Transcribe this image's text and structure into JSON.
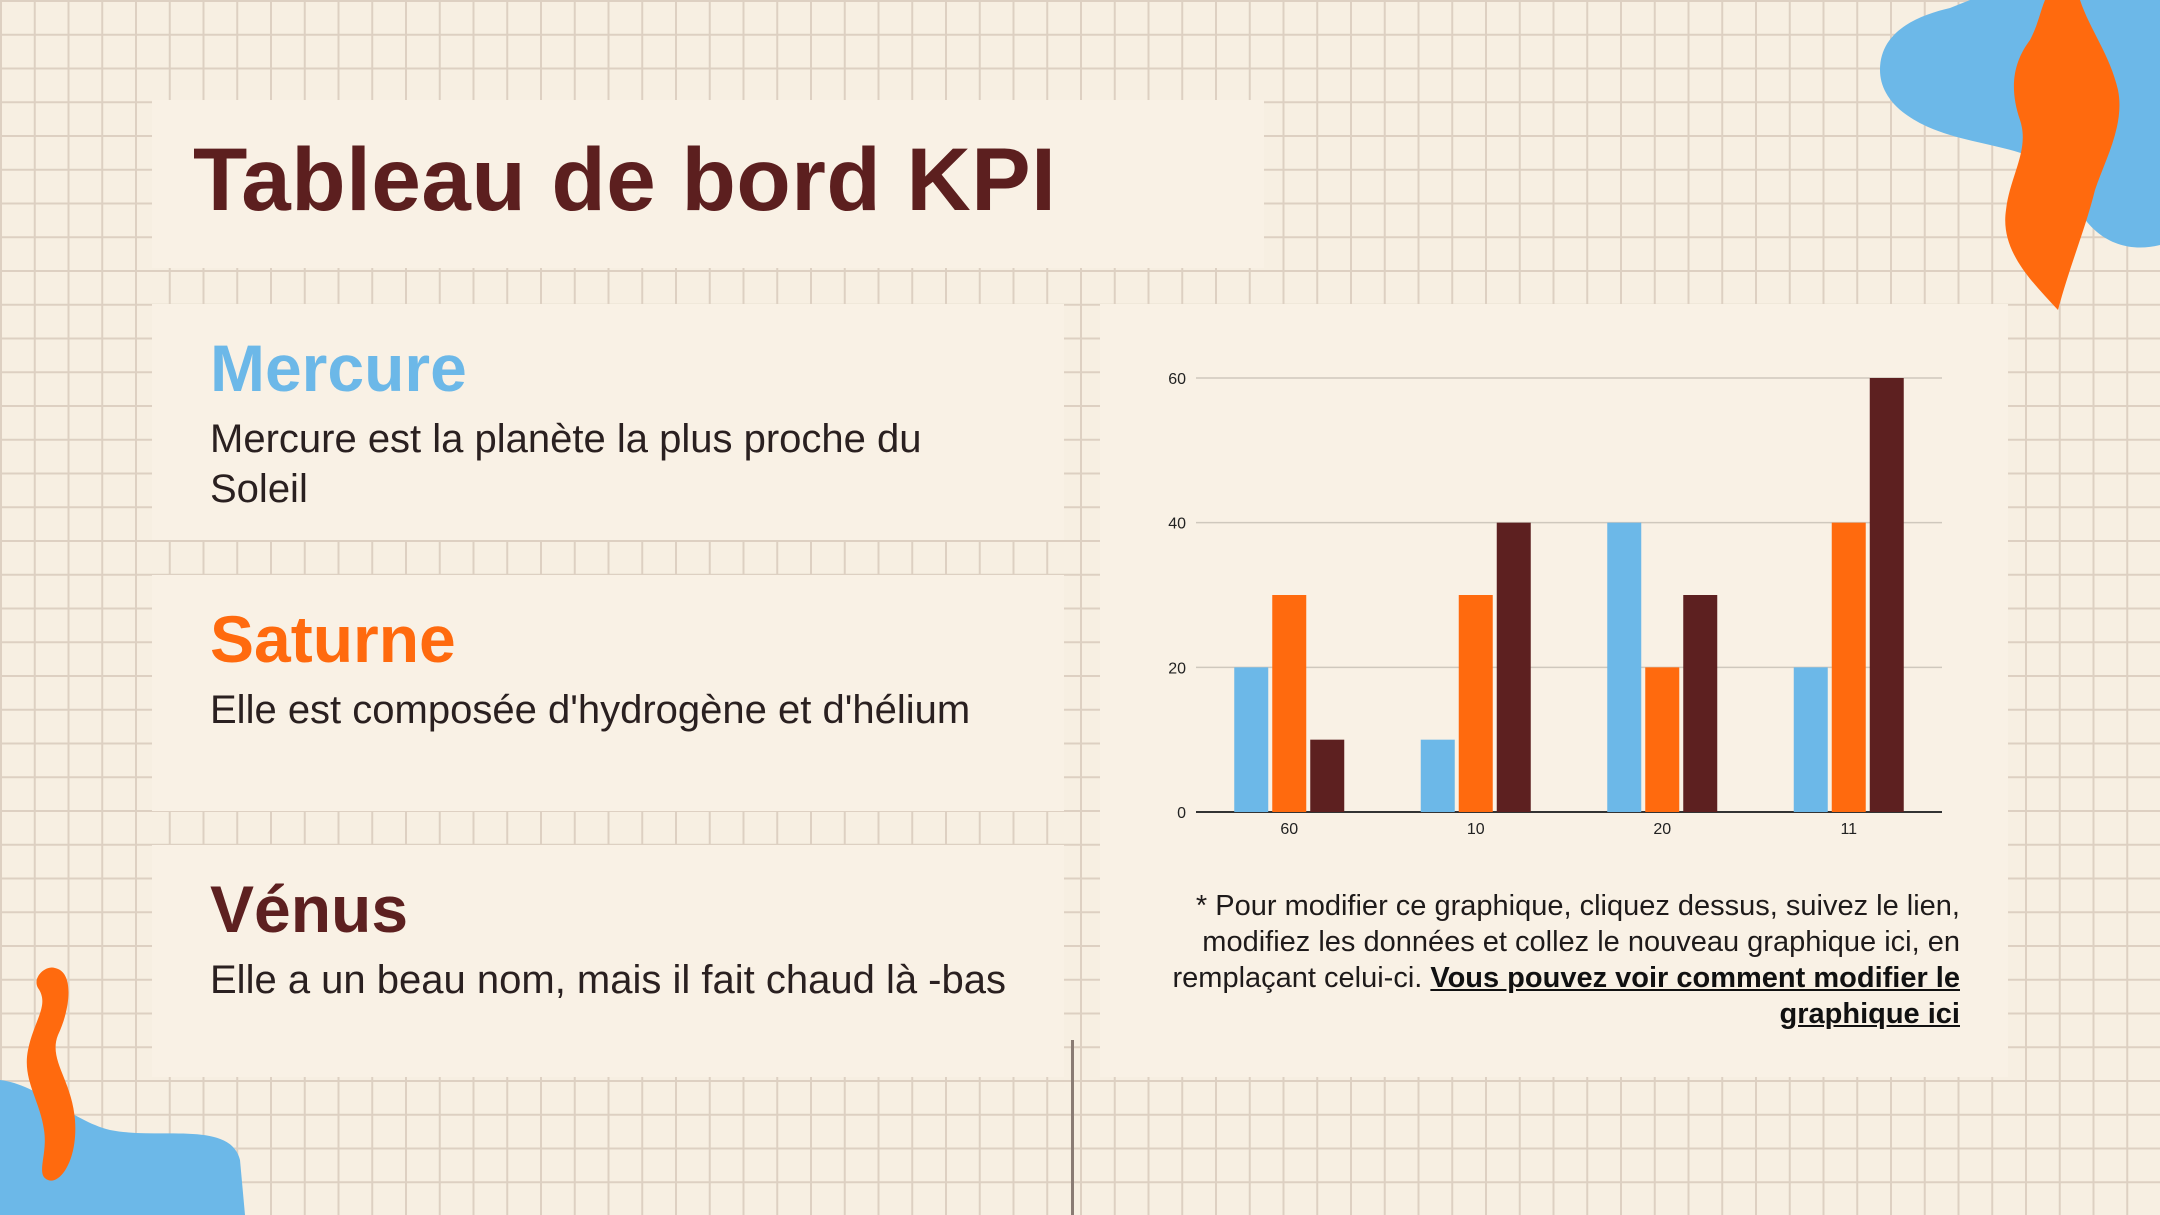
{
  "title": "Tableau de bord KPI",
  "colors": {
    "blue": "#6cb8e8",
    "orange": "#ff6a0e",
    "maroon": "#5d2020",
    "background": "#f7efe2"
  },
  "planets": [
    {
      "name": "Mercure",
      "description": "Mercure est la planète la plus proche du Soleil",
      "color": "#6cb8e8"
    },
    {
      "name": "Saturne",
      "description": "Elle est composée d'hydrogène et d'hélium",
      "color": "#ff6a0e"
    },
    {
      "name": "Vénus",
      "description": "Elle a un beau nom, mais il fait chaud là -bas",
      "color": "#5d2020"
    }
  ],
  "note": {
    "text": "* Pour modifier ce graphique, cliquez dessus, suivez le lien, modifiez les données et collez le nouveau graphique ici, en remplaçant celui-ci. ",
    "link": "Vous pouvez voir comment modifier le graphique ici"
  },
  "chart_data": {
    "type": "bar",
    "categories": [
      "60",
      "10",
      "20",
      "11"
    ],
    "series": [
      {
        "values": [
          20,
          10,
          40,
          20
        ],
        "color": "#6cb8e8"
      },
      {
        "values": [
          30,
          30,
          20,
          40
        ],
        "color": "#ff6a0e"
      },
      {
        "values": [
          10,
          40,
          30,
          60
        ],
        "color": "#5d2020"
      }
    ],
    "ylim": [
      0,
      60
    ],
    "yticks": [
      0,
      20,
      40,
      60
    ],
    "grid": true,
    "legend": "none"
  }
}
